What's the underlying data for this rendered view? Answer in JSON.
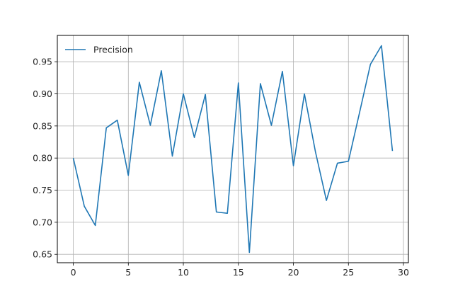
{
  "chart_data": {
    "type": "line",
    "title": "",
    "xlabel": "",
    "ylabel": "",
    "xlim": [
      -1.45,
      30.45
    ],
    "ylim": [
      0.637,
      0.991
    ],
    "xticks": [
      0,
      5,
      10,
      15,
      20,
      25,
      30
    ],
    "yticks": [
      0.65,
      0.7,
      0.75,
      0.8,
      0.85,
      0.9,
      0.95
    ],
    "xtick_labels": [
      "0",
      "5",
      "10",
      "15",
      "20",
      "25",
      "30"
    ],
    "ytick_labels": [
      "0.65",
      "0.70",
      "0.75",
      "0.80",
      "0.85",
      "0.90",
      "0.95"
    ],
    "grid": true,
    "legend_position": "top-left",
    "series": [
      {
        "name": "Precision",
        "color": "#1f77b4",
        "x": [
          0,
          1,
          2,
          3,
          4,
          5,
          6,
          7,
          8,
          9,
          10,
          11,
          12,
          13,
          14,
          15,
          16,
          17,
          18,
          19,
          20,
          21,
          22,
          23,
          24,
          25,
          26,
          27,
          28,
          29
        ],
        "y": [
          0.8,
          0.725,
          0.695,
          0.847,
          0.859,
          0.773,
          0.918,
          0.851,
          0.936,
          0.803,
          0.9,
          0.832,
          0.899,
          0.716,
          0.714,
          0.917,
          0.653,
          0.916,
          0.851,
          0.935,
          0.788,
          0.9,
          0.81,
          0.734,
          0.792,
          0.795,
          0.87,
          0.946,
          0.975,
          0.811
        ]
      }
    ]
  }
}
